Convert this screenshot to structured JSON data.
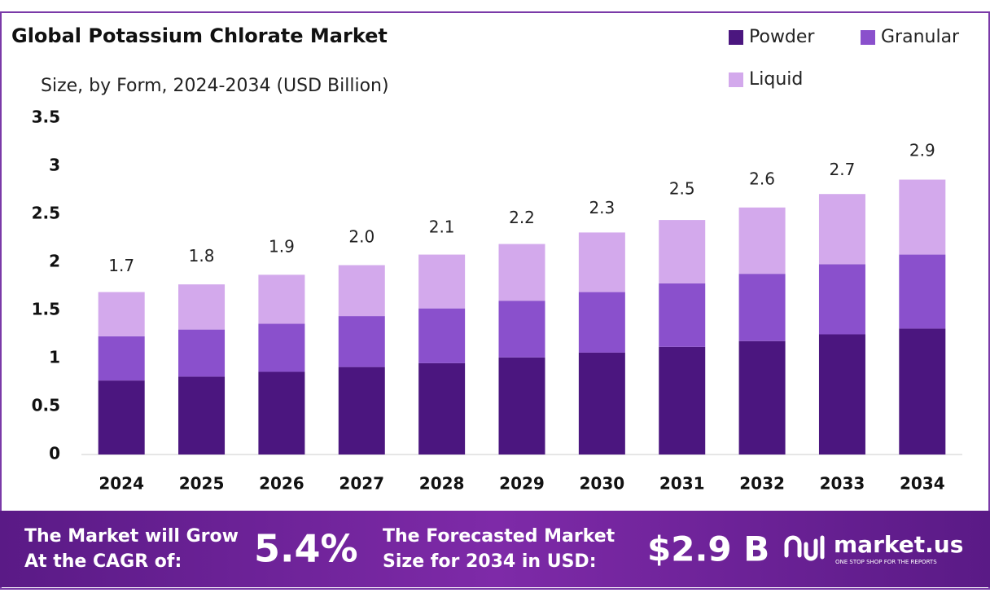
{
  "chart_data": {
    "type": "stacked_bar",
    "title": "Global Potassium Chlorate Market",
    "subtitle": "Size, by Form, 2024-2034 (USD Billion)",
    "categories": [
      "2024",
      "2025",
      "2026",
      "2027",
      "2028",
      "2029",
      "2030",
      "2031",
      "2032",
      "2033",
      "2034"
    ],
    "series": [
      {
        "name": "Powder",
        "color": "#4b167f",
        "values": [
          0.77,
          0.81,
          0.86,
          0.91,
          0.95,
          1.01,
          1.06,
          1.12,
          1.18,
          1.25,
          1.31
        ]
      },
      {
        "name": "Granular",
        "color": "#8a50cc",
        "values": [
          0.46,
          0.49,
          0.5,
          0.53,
          0.57,
          0.59,
          0.63,
          0.66,
          0.7,
          0.73,
          0.77
        ]
      },
      {
        "name": "Liquid",
        "color": "#d3a9ec",
        "values": [
          0.46,
          0.47,
          0.51,
          0.53,
          0.56,
          0.59,
          0.62,
          0.66,
          0.69,
          0.73,
          0.78
        ]
      }
    ],
    "totals": {
      "values": [
        1.7,
        1.8,
        1.9,
        2.0,
        2.1,
        2.2,
        2.3,
        2.5,
        2.6,
        2.7,
        2.9
      ],
      "value_labels": [
        "1.7",
        "1.8",
        "1.9",
        "2.0",
        "2.1",
        "2.2",
        "2.3",
        "2.5",
        "2.6",
        "2.7",
        "2.9"
      ]
    },
    "ylim": [
      0,
      3.5
    ],
    "yticks": [
      0,
      0.5,
      1,
      1.5,
      2,
      2.5,
      3,
      3.5
    ],
    "grid": false
  },
  "footer": {
    "cagr_label": [
      "The Market will Grow",
      "At the CAGR of:"
    ],
    "cagr": "5.4%",
    "forecast_label": [
      "The Forecasted Market",
      "Size for 2034 in USD:"
    ],
    "forecast": "$2.9 B",
    "brand": "market.us",
    "tagline": "ONE STOP SHOP FOR THE REPORTS"
  }
}
